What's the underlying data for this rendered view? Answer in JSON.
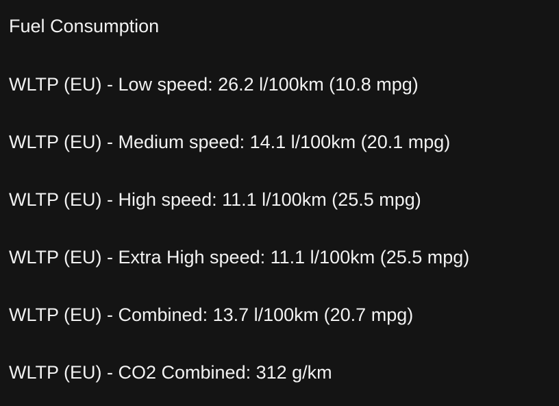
{
  "title": "Fuel Consumption",
  "lines": [
    "WLTP (EU) - Low speed: 26.2 l/100km (10.8 mpg)",
    "WLTP (EU) - Medium speed: 14.1 l/100km (20.1 mpg)",
    "WLTP (EU) - High speed: 11.1 l/100km (25.5 mpg)",
    "WLTP (EU) - Extra High speed: 11.1 l/100km (25.5 mpg)",
    "WLTP (EU) - Combined: 13.7 l/100km (20.7 mpg)",
    "WLTP (EU) - CO2 Combined: 312 g/km"
  ],
  "colors": {
    "background": "#141414",
    "text": "#f2f2f2"
  }
}
